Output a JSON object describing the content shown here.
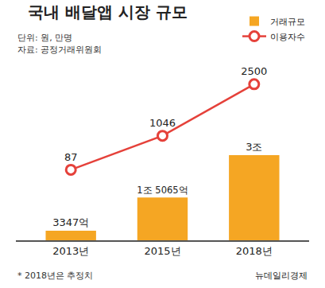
{
  "chart_data": {
    "type": "bar",
    "title": "국내 배달앱 시장 규모",
    "subtitle": [
      "단위: 원, 만명",
      "자료: 공정거래위원회"
    ],
    "annotations": [
      "* 2018년은 추정치",
      "뉴데일리경제"
    ],
    "categories": [
      "2013년",
      "2015년",
      "2018년"
    ],
    "series": [
      {
        "name": "거래규모",
        "type": "bar",
        "color": "#f5a623",
        "values": [
          3347,
          15065,
          30000
        ],
        "value_labels": [
          "3347억",
          "1조 5065억",
          "3조"
        ]
      },
      {
        "name": "이용자수",
        "type": "line",
        "color": "#e5413a",
        "axis": "y2",
        "marker": "circle",
        "values": [
          87,
          1046,
          2500
        ]
      }
    ],
    "ylim": [
      0,
      60000
    ],
    "y2lim": [
      -1900,
      2900
    ],
    "data_labels": true,
    "tick_labels": "x",
    "grid": false,
    "legend": "top right"
  }
}
